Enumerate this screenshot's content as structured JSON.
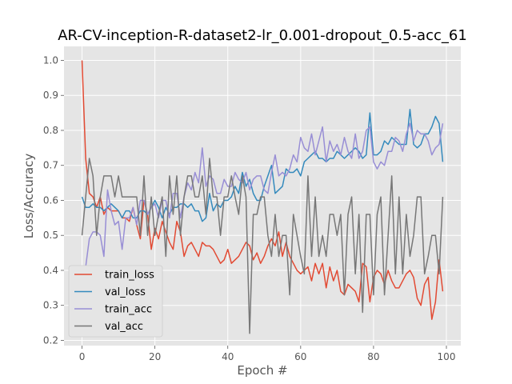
{
  "chart_data": {
    "type": "line",
    "title": "AR-CV-inception-R-dataset2-lr_0.001-dropout_0.5-acc_61",
    "xlabel": "Epoch #",
    "ylabel": "Loss/Accuracy",
    "xlim": [
      -4.95,
      103.95
    ],
    "ylim": [
      0.185,
      1.04
    ],
    "xticks": [
      0,
      20,
      40,
      60,
      80,
      100
    ],
    "yticks": [
      0.2,
      0.3,
      0.4,
      0.5,
      0.6,
      0.7,
      0.8,
      0.9,
      1.0
    ],
    "xtick_labels": [
      "0",
      "20",
      "40",
      "60",
      "80",
      "100"
    ],
    "ytick_labels": [
      "0.2",
      "0.3",
      "0.4",
      "0.5",
      "0.6",
      "0.7",
      "0.8",
      "0.9",
      "1.0"
    ],
    "grid": true,
    "legend_position": "lower-left",
    "series": [
      {
        "name": "train_loss",
        "color": "#E24A33",
        "values": [
          1.0,
          0.72,
          0.62,
          0.61,
          0.58,
          0.61,
          0.56,
          0.58,
          0.57,
          0.57,
          0.57,
          0.55,
          0.55,
          0.54,
          0.58,
          0.53,
          0.49,
          0.6,
          0.56,
          0.46,
          0.52,
          0.49,
          0.54,
          0.51,
          0.48,
          0.46,
          0.54,
          0.51,
          0.44,
          0.47,
          0.48,
          0.46,
          0.44,
          0.48,
          0.47,
          0.47,
          0.46,
          0.44,
          0.42,
          0.43,
          0.46,
          0.42,
          0.43,
          0.44,
          0.46,
          0.48,
          0.47,
          0.43,
          0.45,
          0.42,
          0.44,
          0.47,
          0.49,
          0.47,
          0.51,
          0.44,
          0.48,
          0.44,
          0.42,
          0.4,
          0.39,
          0.4,
          0.41,
          0.37,
          0.42,
          0.39,
          0.42,
          0.35,
          0.41,
          0.37,
          0.4,
          0.34,
          0.33,
          0.36,
          0.35,
          0.34,
          0.31,
          0.42,
          0.41,
          0.31,
          0.38,
          0.4,
          0.39,
          0.36,
          0.4,
          0.37,
          0.35,
          0.35,
          0.37,
          0.39,
          0.4,
          0.38,
          0.32,
          0.3,
          0.36,
          0.38,
          0.26,
          0.31,
          0.43,
          0.34
        ]
      },
      {
        "name": "val_loss",
        "color": "#348ABD",
        "values": [
          0.61,
          0.58,
          0.58,
          0.59,
          0.58,
          0.58,
          0.57,
          0.58,
          0.59,
          0.58,
          0.57,
          0.55,
          0.57,
          0.57,
          0.55,
          0.55,
          0.57,
          0.57,
          0.56,
          0.58,
          0.6,
          0.58,
          0.55,
          0.58,
          0.56,
          0.58,
          0.58,
          0.59,
          0.59,
          0.58,
          0.59,
          0.57,
          0.57,
          0.54,
          0.55,
          0.62,
          0.57,
          0.59,
          0.58,
          0.6,
          0.6,
          0.61,
          0.64,
          0.62,
          0.68,
          0.64,
          0.66,
          0.62,
          0.6,
          0.6,
          0.64,
          0.67,
          0.7,
          0.62,
          0.63,
          0.64,
          0.69,
          0.68,
          0.68,
          0.69,
          0.67,
          0.71,
          0.72,
          0.73,
          0.74,
          0.72,
          0.72,
          0.71,
          0.72,
          0.72,
          0.74,
          0.73,
          0.72,
          0.73,
          0.74,
          0.75,
          0.74,
          0.72,
          0.73,
          0.85,
          0.73,
          0.73,
          0.74,
          0.77,
          0.76,
          0.78,
          0.77,
          0.76,
          0.76,
          0.76,
          0.86,
          0.76,
          0.75,
          0.76,
          0.79,
          0.79,
          0.81,
          0.84,
          0.82,
          0.71
        ]
      },
      {
        "name": "train_acc",
        "color": "#988ED5",
        "values": [
          null,
          0.41,
          0.49,
          0.51,
          0.51,
          0.5,
          0.44,
          0.63,
          0.57,
          0.53,
          0.54,
          0.46,
          0.55,
          0.55,
          0.58,
          0.53,
          0.6,
          0.6,
          0.56,
          0.58,
          0.59,
          0.55,
          0.6,
          0.6,
          0.55,
          0.62,
          0.62,
          0.55,
          0.61,
          0.65,
          0.63,
          0.68,
          0.65,
          0.75,
          0.64,
          0.67,
          0.66,
          0.62,
          0.62,
          0.66,
          0.64,
          0.64,
          0.68,
          0.66,
          0.65,
          0.68,
          0.63,
          0.66,
          0.67,
          0.67,
          0.63,
          0.62,
          0.68,
          0.73,
          0.67,
          0.68,
          0.67,
          0.69,
          0.73,
          0.71,
          0.78,
          0.75,
          0.74,
          0.79,
          0.73,
          0.77,
          0.81,
          0.71,
          0.77,
          0.74,
          0.76,
          0.73,
          0.78,
          0.74,
          0.72,
          0.79,
          0.72,
          0.74,
          0.8,
          0.81,
          0.71,
          0.69,
          0.71,
          0.7,
          0.74,
          0.74,
          0.78,
          0.77,
          0.74,
          0.79,
          0.82,
          0.77,
          0.8,
          0.79,
          0.79,
          0.77,
          0.73,
          0.75,
          0.76,
          0.82
        ]
      },
      {
        "name": "val_acc",
        "color": "#777777",
        "values": [
          0.5,
          0.61,
          0.72,
          0.67,
          0.5,
          0.61,
          0.67,
          0.67,
          0.67,
          0.61,
          0.67,
          0.61,
          0.61,
          0.61,
          0.61,
          0.61,
          0.5,
          0.67,
          0.5,
          0.61,
          0.5,
          0.56,
          0.61,
          0.44,
          0.67,
          0.56,
          0.67,
          0.5,
          0.61,
          0.67,
          0.67,
          0.61,
          0.61,
          0.67,
          0.56,
          0.72,
          0.61,
          0.61,
          0.5,
          0.61,
          0.61,
          0.67,
          0.61,
          0.56,
          0.67,
          0.61,
          0.22,
          0.56,
          0.56,
          0.61,
          0.61,
          0.5,
          0.44,
          0.56,
          0.44,
          0.5,
          0.5,
          0.33,
          0.56,
          0.5,
          0.44,
          0.39,
          0.67,
          0.44,
          0.61,
          0.44,
          0.5,
          0.44,
          0.56,
          0.56,
          0.5,
          0.56,
          0.33,
          0.56,
          0.61,
          0.39,
          0.56,
          0.28,
          0.56,
          0.56,
          0.33,
          0.56,
          0.61,
          0.33,
          0.5,
          0.67,
          0.39,
          0.61,
          0.39,
          0.56,
          0.44,
          0.5,
          0.61,
          0.61,
          0.39,
          0.44,
          0.5,
          0.5,
          0.39,
          0.61
        ]
      }
    ]
  }
}
